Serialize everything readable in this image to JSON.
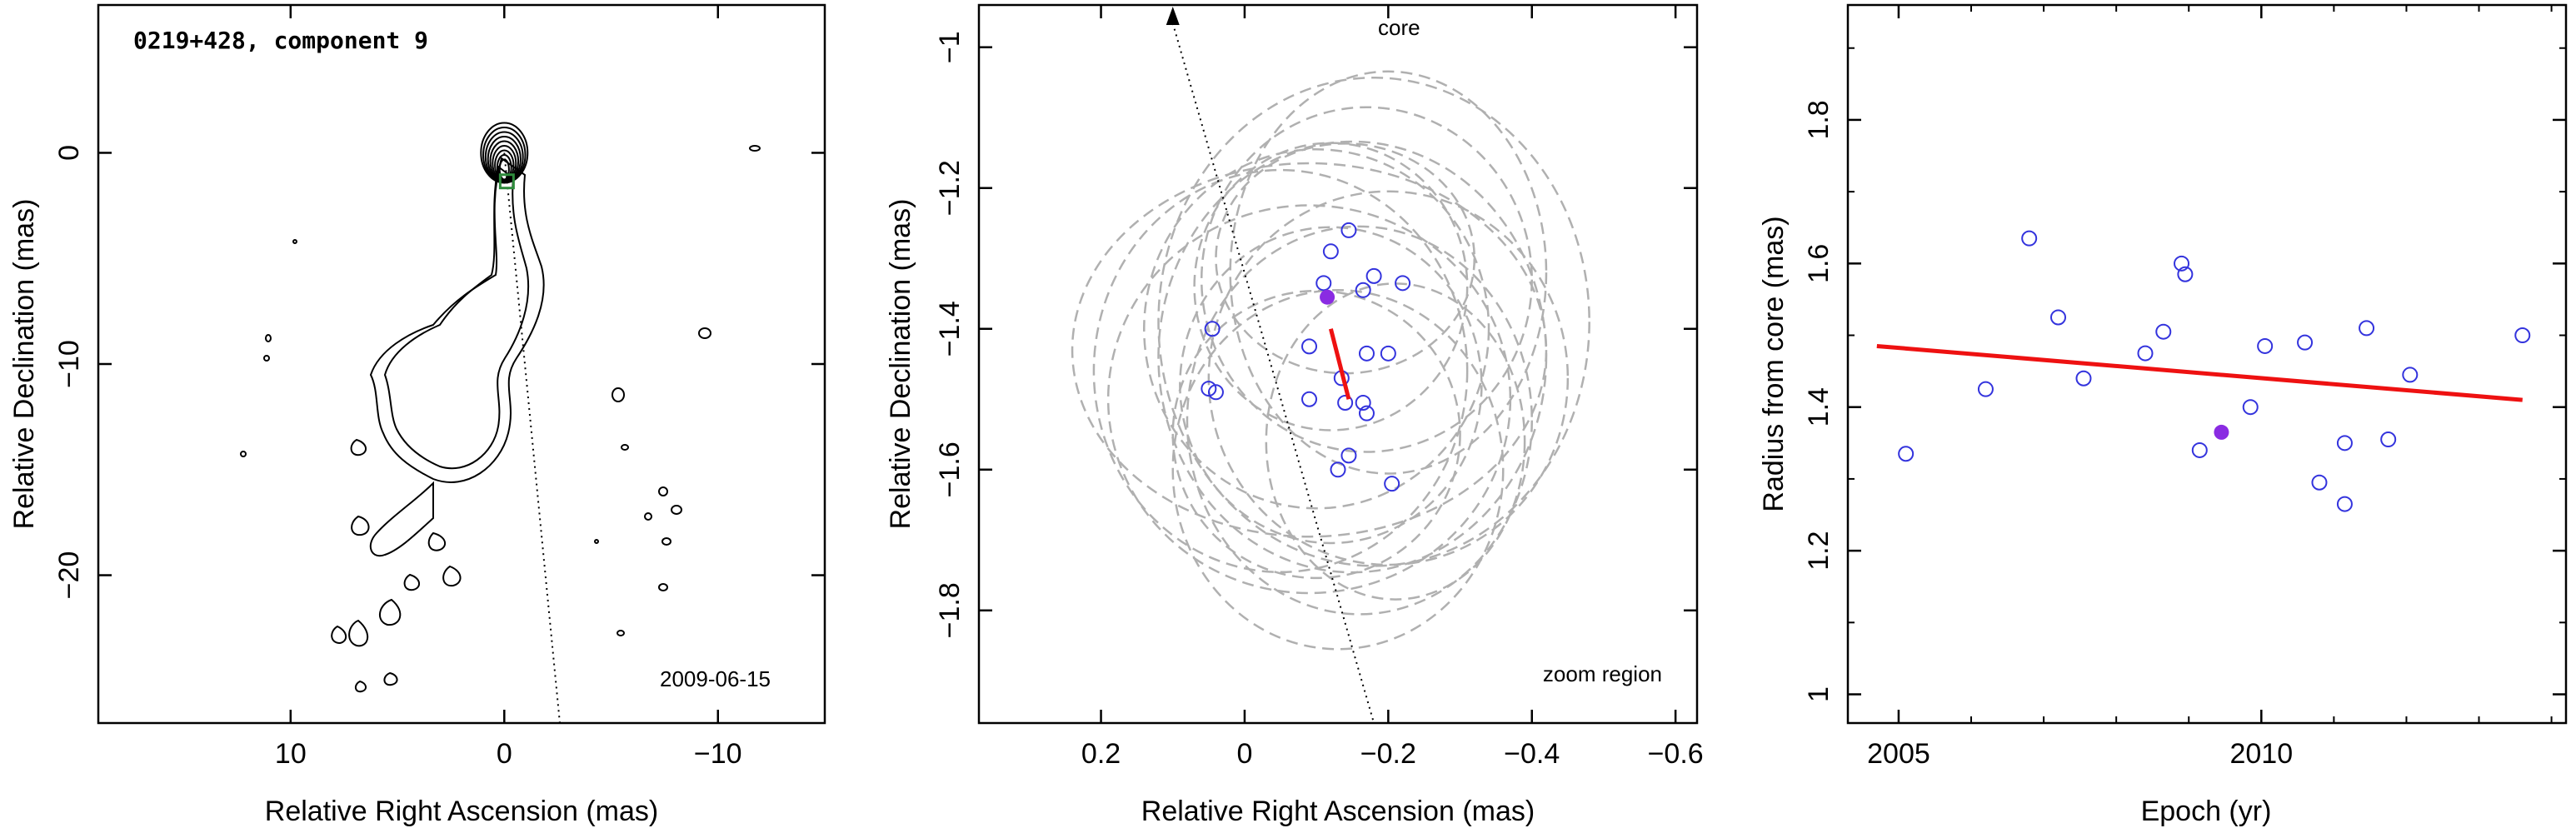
{
  "chart_data": [
    {
      "type": "contour",
      "title": "0219+428, component 9",
      "date_label": "2009-06-15",
      "xlabel": "Relative Right Ascension (mas)",
      "ylabel": "Relative Declination (mas)",
      "xlim": [
        19,
        -15
      ],
      "ylim": [
        -27,
        7
      ],
      "xticks": [
        10,
        0,
        -10
      ],
      "yticks": [
        0,
        -10,
        -20
      ],
      "component_position": [
        -0.12,
        -1.35
      ],
      "jet_direction_line": [
        [
          0,
          0
        ],
        [
          -2.6,
          -27
        ]
      ],
      "colors": {
        "contour": "#000000",
        "marker": "#2e8b3c"
      }
    },
    {
      "type": "scatter",
      "annotation_top": "core",
      "annotation_bottom": "zoom region",
      "xlabel": "Relative Right Ascension (mas)",
      "ylabel": "Relative Declination (mas)",
      "xlim": [
        0.37,
        -0.63
      ],
      "ylim": [
        -1.96,
        -0.94
      ],
      "xticks": [
        0.2,
        0,
        -0.2,
        -0.4,
        -0.6
      ],
      "xtick_labels": [
        "0.2",
        "0",
        "−0.2",
        "−0.4",
        "−0.6"
      ],
      "yticks": [
        -1,
        -1.2,
        -1.4,
        -1.6,
        -1.8
      ],
      "ytick_labels": [
        "−1",
        "−1.2",
        "−1.4",
        "−1.6",
        "−1.8"
      ],
      "points": [
        {
          "x": 0.045,
          "y": -1.4
        },
        {
          "x": 0.04,
          "y": -1.49
        },
        {
          "x": 0.05,
          "y": -1.485
        },
        {
          "x": -0.12,
          "y": -1.29
        },
        {
          "x": -0.145,
          "y": -1.26
        },
        {
          "x": -0.11,
          "y": -1.335
        },
        {
          "x": -0.165,
          "y": -1.345
        },
        {
          "x": -0.18,
          "y": -1.325
        },
        {
          "x": -0.22,
          "y": -1.335
        },
        {
          "x": -0.09,
          "y": -1.425
        },
        {
          "x": -0.17,
          "y": -1.435
        },
        {
          "x": -0.2,
          "y": -1.435
        },
        {
          "x": -0.135,
          "y": -1.47
        },
        {
          "x": -0.09,
          "y": -1.5
        },
        {
          "x": -0.14,
          "y": -1.505
        },
        {
          "x": -0.165,
          "y": -1.505
        },
        {
          "x": -0.17,
          "y": -1.52
        },
        {
          "x": -0.145,
          "y": -1.58
        },
        {
          "x": -0.13,
          "y": -1.6
        },
        {
          "x": -0.205,
          "y": -1.62
        }
      ],
      "highlight_point": {
        "x": -0.115,
        "y": -1.355
      },
      "motion_vector": [
        [
          -0.12,
          -1.4
        ],
        [
          -0.145,
          -1.5
        ]
      ],
      "error_ellipses": [
        {
          "x": -0.12,
          "y": -1.34,
          "rx": 0.19,
          "ry": 0.2
        },
        {
          "x": -0.17,
          "y": -1.33,
          "rx": 0.23,
          "ry": 0.24
        },
        {
          "x": -0.2,
          "y": -1.32,
          "rx": 0.22,
          "ry": 0.28
        },
        {
          "x": -0.1,
          "y": -1.4,
          "rx": 0.24,
          "ry": 0.25
        },
        {
          "x": -0.15,
          "y": -1.44,
          "rx": 0.27,
          "ry": 0.3
        },
        {
          "x": -0.12,
          "y": -1.48,
          "rx": 0.21,
          "ry": 0.22
        },
        {
          "x": -0.09,
          "y": -1.5,
          "rx": 0.28,
          "ry": 0.27
        },
        {
          "x": -0.05,
          "y": -1.46,
          "rx": 0.26,
          "ry": 0.28
        },
        {
          "x": -0.16,
          "y": -1.53,
          "rx": 0.24,
          "ry": 0.27
        },
        {
          "x": -0.2,
          "y": -1.47,
          "rx": 0.25,
          "ry": 0.26
        },
        {
          "x": -0.13,
          "y": -1.6,
          "rx": 0.23,
          "ry": 0.25
        },
        {
          "x": -0.09,
          "y": -1.43,
          "rx": 0.33,
          "ry": 0.26
        },
        {
          "x": -0.18,
          "y": -1.39,
          "rx": 0.3,
          "ry": 0.34
        },
        {
          "x": -0.14,
          "y": -1.3,
          "rx": 0.18,
          "ry": 0.16
        },
        {
          "x": -0.1,
          "y": -1.55,
          "rx": 0.2,
          "ry": 0.2
        },
        {
          "x": -0.21,
          "y": -1.56,
          "rx": 0.18,
          "ry": 0.22
        }
      ],
      "core_line": [
        [
          0.1,
          -0.94
        ],
        [
          -0.18,
          -1.96
        ]
      ],
      "colors": {
        "points": "#3333dd",
        "highlight": "#8a2be2",
        "vector": "#ee1111",
        "ellipses": "#b0b0b0"
      }
    },
    {
      "type": "scatter",
      "xlabel": "Epoch (yr)",
      "ylabel": "Radius from core (mas)",
      "xlim": [
        2004.3,
        2014.2
      ],
      "ylim": [
        0.96,
        1.96
      ],
      "xticks": [
        2005,
        2010
      ],
      "yticks": [
        1,
        1.2,
        1.4,
        1.6,
        1.8
      ],
      "points": [
        {
          "x": 2005.1,
          "y": 1.335
        },
        {
          "x": 2006.2,
          "y": 1.425
        },
        {
          "x": 2006.8,
          "y": 1.635
        },
        {
          "x": 2007.2,
          "y": 1.525
        },
        {
          "x": 2007.55,
          "y": 1.44
        },
        {
          "x": 2008.4,
          "y": 1.475
        },
        {
          "x": 2008.65,
          "y": 1.505
        },
        {
          "x": 2008.9,
          "y": 1.6
        },
        {
          "x": 2008.95,
          "y": 1.585
        },
        {
          "x": 2009.15,
          "y": 1.34
        },
        {
          "x": 2009.85,
          "y": 1.4
        },
        {
          "x": 2010.05,
          "y": 1.485
        },
        {
          "x": 2010.6,
          "y": 1.49
        },
        {
          "x": 2010.8,
          "y": 1.295
        },
        {
          "x": 2011.15,
          "y": 1.265
        },
        {
          "x": 2011.15,
          "y": 1.35
        },
        {
          "x": 2011.45,
          "y": 1.51
        },
        {
          "x": 2011.75,
          "y": 1.355
        },
        {
          "x": 2012.05,
          "y": 1.445
        },
        {
          "x": 2013.6,
          "y": 1.5
        }
      ],
      "highlight_point": {
        "x": 2009.45,
        "y": 1.365
      },
      "fit_line": [
        [
          2004.7,
          1.485
        ],
        [
          2013.6,
          1.41
        ]
      ],
      "colors": {
        "points": "#3333dd",
        "highlight": "#8a2be2",
        "fit": "#ee1111"
      }
    }
  ]
}
